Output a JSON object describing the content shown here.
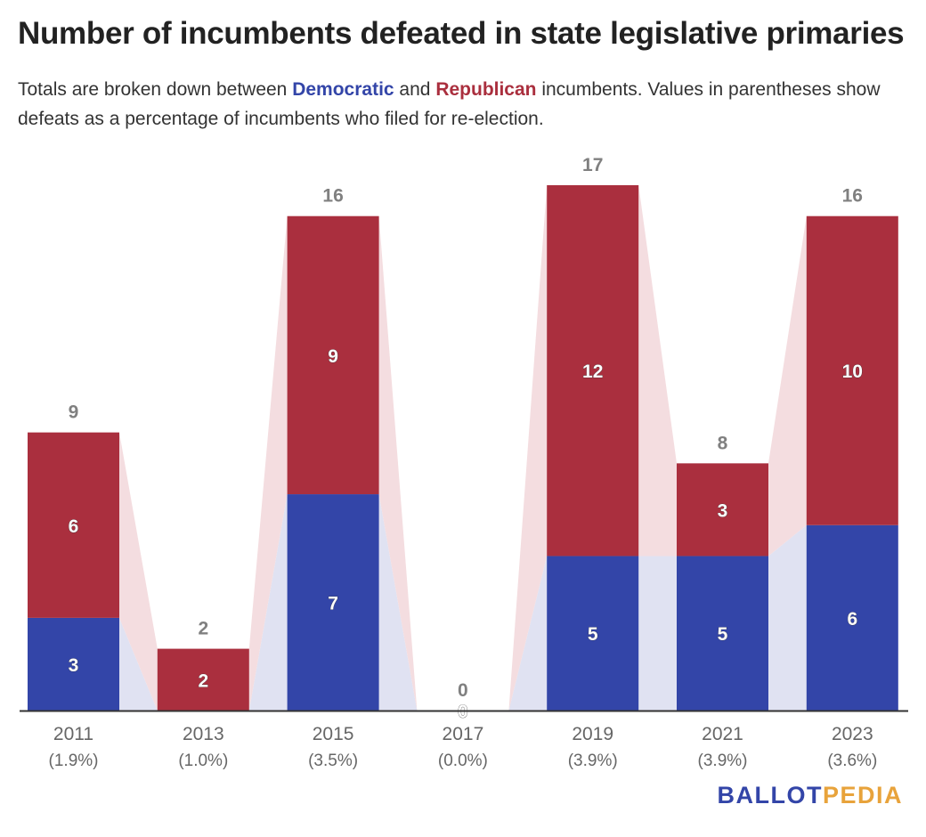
{
  "header": {
    "title": "Number of incumbents defeated in state legislative primaries",
    "subtitle_parts": {
      "pre": "Totals are broken down between ",
      "dem": "Democratic",
      "mid": " and ",
      "rep": "Republican",
      "post": " incumbents. Values in parentheses show defeats as a percentage of incumbents who filed for re-election."
    }
  },
  "logo": {
    "part1": "BALLOT",
    "part2": "PEDIA"
  },
  "colors": {
    "democratic": "#3345a8",
    "republican": "#aa2f3e",
    "democratic_band": "#e0e2f2",
    "republican_band": "#f4dde0",
    "total_label": "#808080",
    "axis": "#333333"
  },
  "chart_data": {
    "type": "bar",
    "stacked": true,
    "categories": [
      "2011",
      "2013",
      "2015",
      "2017",
      "2019",
      "2021",
      "2023"
    ],
    "category_sublabels": [
      "(1.9%)",
      "(1.0%)",
      "(3.5%)",
      "(0.0%)",
      "(3.9%)",
      "(3.9%)",
      "(3.6%)"
    ],
    "series": [
      {
        "name": "Democratic",
        "values": [
          3,
          0,
          7,
          0,
          5,
          5,
          6
        ]
      },
      {
        "name": "Republican",
        "values": [
          6,
          2,
          9,
          0,
          12,
          3,
          10
        ]
      }
    ],
    "totals": [
      9,
      2,
      16,
      0,
      17,
      8,
      16
    ],
    "ylim": [
      0,
      17
    ],
    "grid": false,
    "title": "Number of incumbents defeated in state legislative primaries",
    "xlabel": "",
    "ylabel": ""
  }
}
